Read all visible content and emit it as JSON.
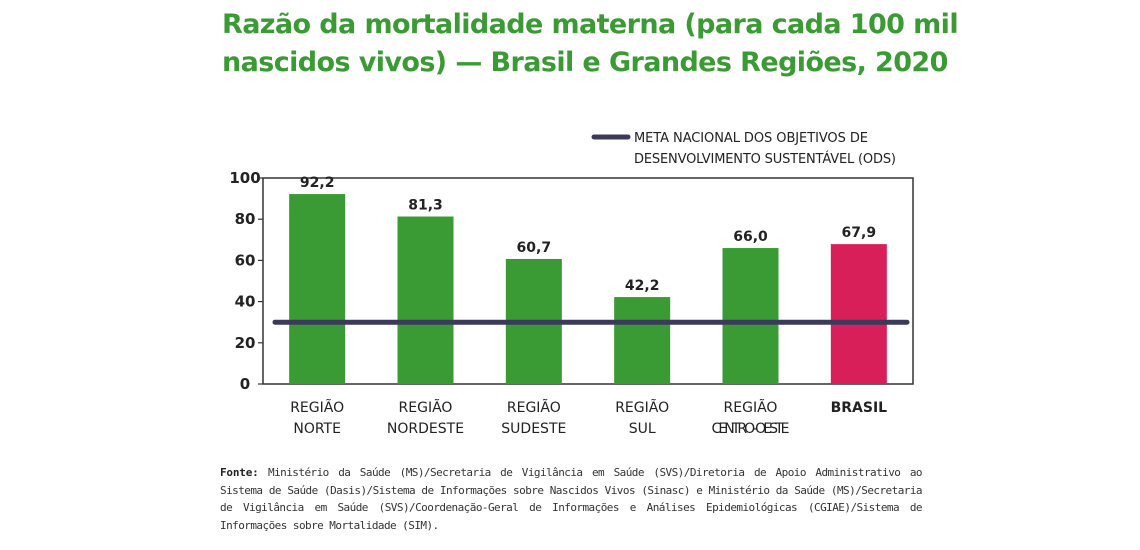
{
  "title_lines": [
    "Razão da mortalidade materna (para cada 100 mil",
    "nascidos vivos) — Brasil e Grandes Regiões, 2020"
  ],
  "source": {
    "label": "Fonte:",
    "text": "Ministério da Saúde (MS)/Secretaria de Vigilância em Saúde (SVS)/Diretoria de Apoio Administrativo ao Sistema de Saúde (Dasis)/Sistema de Informações sobre Nascidos Vivos (Sinasc) e Ministério da Saúde (MS)/Secretaria de Vigilância em Saúde (SVS)/Coordenação-Geral de Informações e Análises Epidemiológicas (CGIAE)/Sistema de Informações sobre Mortalidade (SIM)."
  },
  "colors": {
    "title": "#3a9a34",
    "region_bar": "#3a9a34",
    "brasil_bar": "#d81f5a",
    "target_line": "#3c3a5c",
    "frame": "#333333"
  },
  "chart_data": {
    "type": "bar",
    "categories": [
      [
        "REGIÃO",
        "NORTE"
      ],
      [
        "REGIÃO",
        "NORDESTE"
      ],
      [
        "REGIÃO",
        "SUDESTE"
      ],
      [
        "REGIÃO",
        "SUL"
      ],
      [
        "REGIÃO",
        "CENTRO-OESTE"
      ],
      [
        "BRASIL"
      ]
    ],
    "values": [
      92.2,
      81.3,
      60.7,
      42.2,
      66.0,
      67.9
    ],
    "value_labels": [
      "92,2",
      "81,3",
      "60,7",
      "42,2",
      "66,0",
      "67,9"
    ],
    "highlight_index": 5,
    "ylim": [
      0,
      100
    ],
    "yticks": [
      0,
      20,
      40,
      60,
      80,
      100
    ],
    "target_line": {
      "value": 30,
      "label_lines": [
        "META NACIONAL DOS OBJETIVOS DE",
        "DESENVOLVIMENTO SUSTENTÁVEL (ODS)"
      ]
    },
    "grid": false,
    "legend_position": "top-right"
  }
}
